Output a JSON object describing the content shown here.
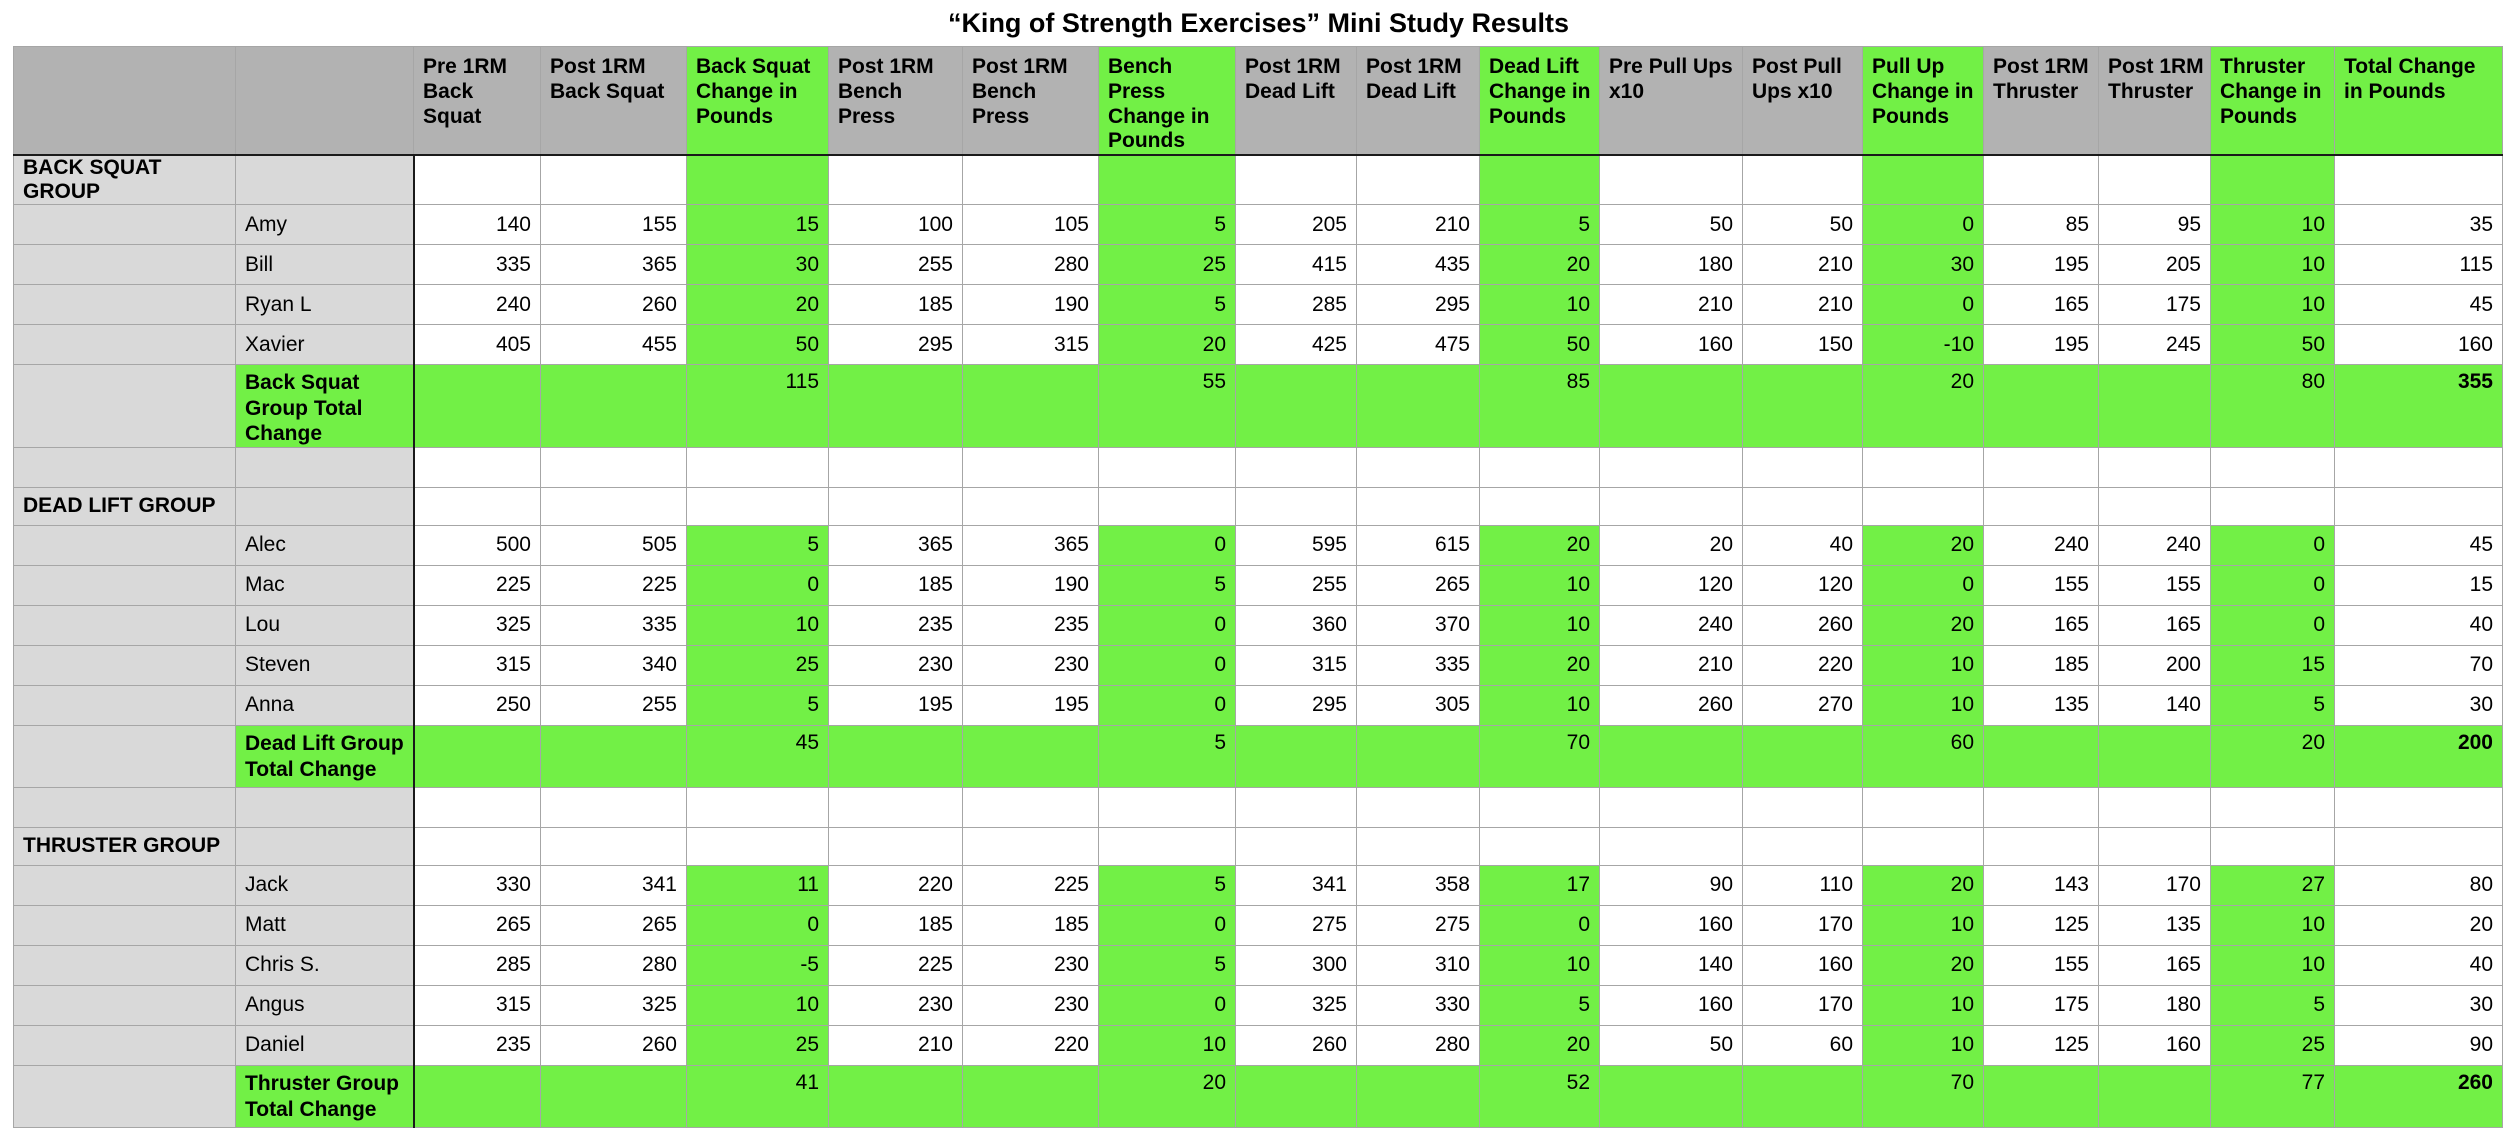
{
  "title": "“King of Strength Exercises” Mini Study Results",
  "colors": {
    "change_green": "#72f046",
    "header_gray": "#b2b2b2",
    "row_gray": "#d9d9d9",
    "grid_line": "#a6a6a6"
  },
  "table": {
    "column_headers": [
      "",
      "",
      "Pre 1RM Back Squat",
      "Post 1RM Back Squat",
      "Back Squat Change in Pounds",
      "Post 1RM Bench Press",
      "Post 1RM Bench Press",
      "Bench Press Change in Pounds",
      "Post 1RM Dead Lift",
      "Post 1RM Dead Lift",
      "Dead Lift Change in Pounds",
      "Pre Pull Ups x10",
      "Post Pull Ups x10",
      "Pull Up Change in Pounds",
      "Post 1RM Thruster",
      "Post 1RM Thruster",
      "Thruster Change in Pounds",
      "Total Change in Pounds"
    ],
    "change_column_indices": [
      4,
      7,
      10,
      13,
      16
    ],
    "total_column_index": 17,
    "groups": [
      {
        "label": "BACK SQUAT GROUP",
        "green_changes_in_label_row": true,
        "members": [
          {
            "name": "Amy",
            "values": [
              140,
              155,
              15,
              100,
              105,
              5,
              205,
              210,
              5,
              50,
              50,
              0,
              85,
              95,
              10,
              35
            ]
          },
          {
            "name": "Bill",
            "values": [
              335,
              365,
              30,
              255,
              280,
              25,
              415,
              435,
              20,
              180,
              210,
              30,
              195,
              205,
              10,
              115
            ]
          },
          {
            "name": "Ryan L",
            "values": [
              240,
              260,
              20,
              185,
              190,
              5,
              285,
              295,
              10,
              210,
              210,
              0,
              165,
              175,
              10,
              45
            ]
          },
          {
            "name": "Xavier",
            "values": [
              405,
              455,
              50,
              295,
              315,
              20,
              425,
              475,
              50,
              160,
              150,
              -10,
              195,
              245,
              50,
              160
            ]
          }
        ],
        "total_label": "Back Squat Group Total Change",
        "total_values": {
          "back_squat": 115,
          "bench_press": 55,
          "dead_lift": 85,
          "pull_up": 20,
          "thruster": 80,
          "total": 355
        }
      },
      {
        "label": "DEAD LIFT GROUP",
        "green_changes_in_label_row": false,
        "members": [
          {
            "name": "Alec",
            "values": [
              500,
              505,
              5,
              365,
              365,
              0,
              595,
              615,
              20,
              20,
              40,
              20,
              240,
              240,
              0,
              45
            ]
          },
          {
            "name": "Mac",
            "values": [
              225,
              225,
              0,
              185,
              190,
              5,
              255,
              265,
              10,
              120,
              120,
              0,
              155,
              155,
              0,
              15
            ]
          },
          {
            "name": "Lou",
            "values": [
              325,
              335,
              10,
              235,
              235,
              0,
              360,
              370,
              10,
              240,
              260,
              20,
              165,
              165,
              0,
              40
            ]
          },
          {
            "name": "Steven",
            "values": [
              315,
              340,
              25,
              230,
              230,
              0,
              315,
              335,
              20,
              210,
              220,
              10,
              185,
              200,
              15,
              70
            ]
          },
          {
            "name": "Anna",
            "values": [
              250,
              255,
              5,
              195,
              195,
              0,
              295,
              305,
              10,
              260,
              270,
              10,
              135,
              140,
              5,
              30
            ]
          }
        ],
        "total_label": "Dead Lift  Group Total Change",
        "total_values": {
          "back_squat": 45,
          "bench_press": 5,
          "dead_lift": 70,
          "pull_up": 60,
          "thruster": 20,
          "total": 200
        }
      },
      {
        "label": "THRUSTER GROUP",
        "green_changes_in_label_row": false,
        "members": [
          {
            "name": "Jack",
            "values": [
              330,
              341,
              11,
              220,
              225,
              5,
              341,
              358,
              17,
              90,
              110,
              20,
              143,
              170,
              27,
              80
            ]
          },
          {
            "name": "Matt",
            "values": [
              265,
              265,
              0,
              185,
              185,
              0,
              275,
              275,
              0,
              160,
              170,
              10,
              125,
              135,
              10,
              20
            ]
          },
          {
            "name": "Chris S.",
            "values": [
              285,
              280,
              -5,
              225,
              230,
              5,
              300,
              310,
              10,
              140,
              160,
              20,
              155,
              165,
              10,
              40
            ]
          },
          {
            "name": "Angus",
            "values": [
              315,
              325,
              10,
              230,
              230,
              0,
              325,
              330,
              5,
              160,
              170,
              10,
              175,
              180,
              5,
              30
            ]
          },
          {
            "name": "Daniel",
            "values": [
              235,
              260,
              25,
              210,
              220,
              10,
              260,
              280,
              20,
              50,
              60,
              10,
              125,
              160,
              25,
              90
            ]
          }
        ],
        "total_label": "Thruster Group Total Change",
        "total_values": {
          "back_squat": 41,
          "bench_press": 20,
          "dead_lift": 52,
          "pull_up": 70,
          "thruster": 77,
          "total": 260
        }
      }
    ]
  }
}
